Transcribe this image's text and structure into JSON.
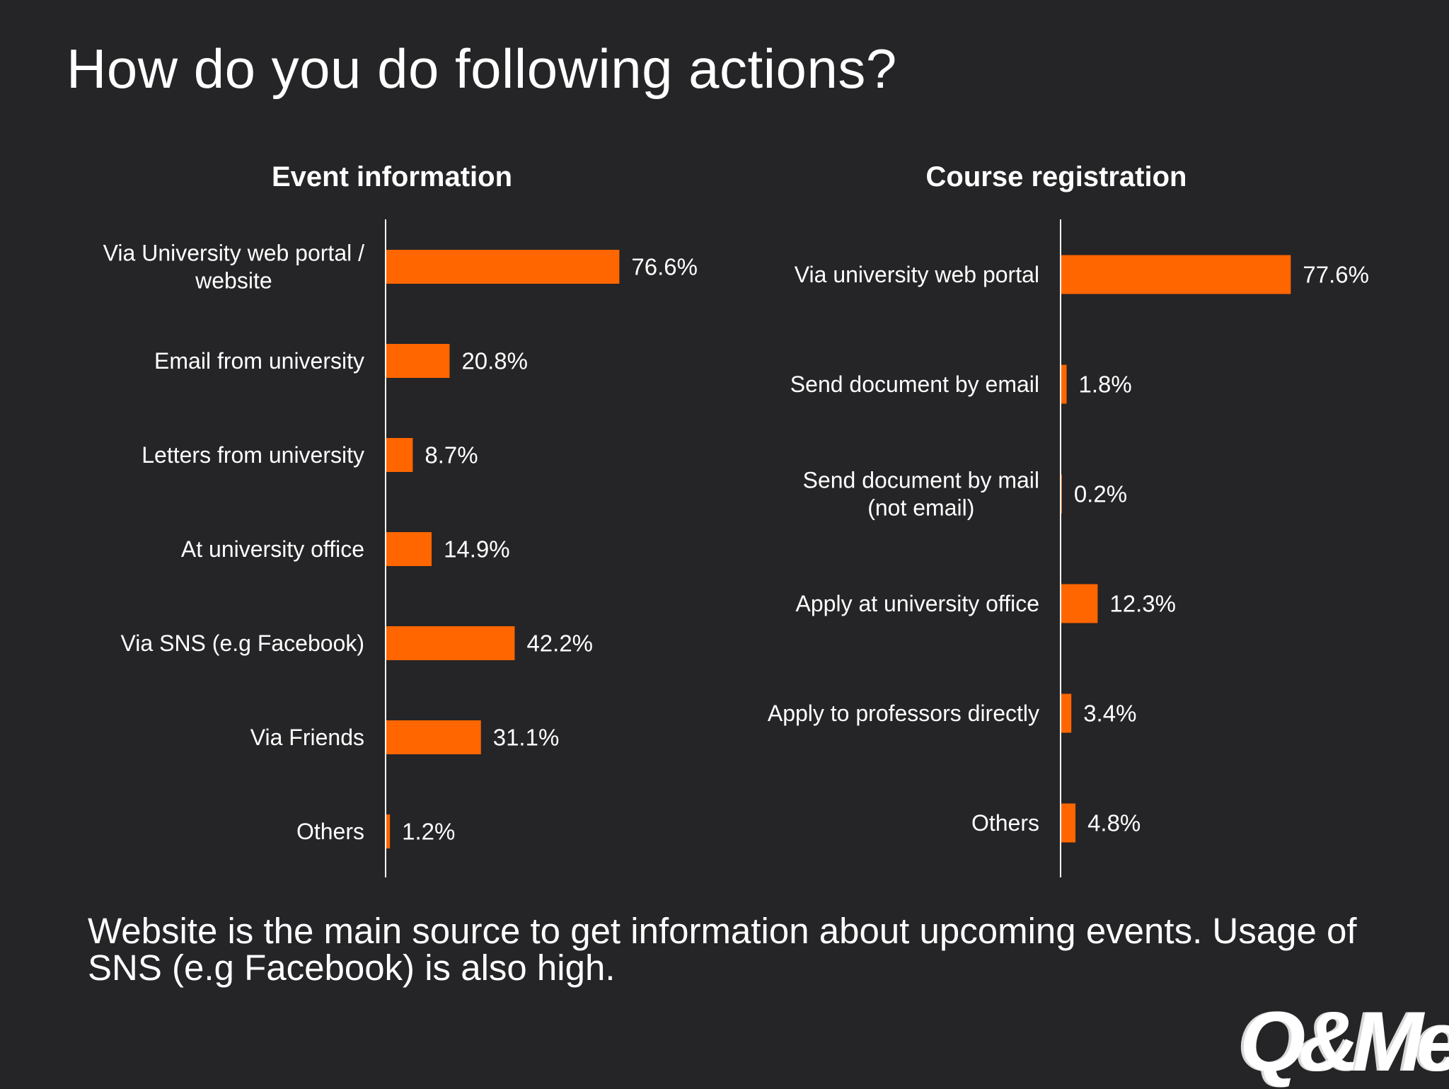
{
  "title": "How do you do following actions?",
  "colors": {
    "background": "#252426",
    "bar": "#ff6600",
    "text": "#ffffff",
    "axis": "#ffffff"
  },
  "chart_data": [
    {
      "type": "bar",
      "orientation": "horizontal",
      "title": "Event information",
      "categories": [
        [
          "Via University web portal /",
          "website"
        ],
        [
          "Email from university"
        ],
        [
          "Letters from university"
        ],
        [
          "At university office"
        ],
        [
          "Via SNS (e.g Facebook)"
        ],
        [
          "Via Friends"
        ],
        [
          "Others"
        ]
      ],
      "values": [
        76.6,
        20.8,
        8.7,
        14.9,
        42.2,
        31.1,
        1.2
      ],
      "labels": [
        "76.6%",
        "20.8%",
        "8.7%",
        "14.9%",
        "42.2%",
        "31.1%",
        "1.2%"
      ],
      "xlim": [
        0,
        100
      ],
      "grid": false
    },
    {
      "type": "bar",
      "orientation": "horizontal",
      "title": "Course registration",
      "categories": [
        [
          "Via university web portal"
        ],
        [
          "Send document by email"
        ],
        [
          "Send document by mail",
          "(not email)"
        ],
        [
          "Apply at university office"
        ],
        [
          "Apply to professors directly"
        ],
        [
          "Others"
        ]
      ],
      "values": [
        77.6,
        1.8,
        0.2,
        12.3,
        3.4,
        4.8
      ],
      "labels": [
        "77.6%",
        "1.8%",
        "0.2%",
        "12.3%",
        "3.4%",
        "4.8%"
      ],
      "xlim": [
        0,
        100
      ],
      "grid": false
    }
  ],
  "footnote": "Website is the main source to get information about upcoming events. Usage of SNS (e.g Facebook) is also high.",
  "logo_text": "Q&Me"
}
